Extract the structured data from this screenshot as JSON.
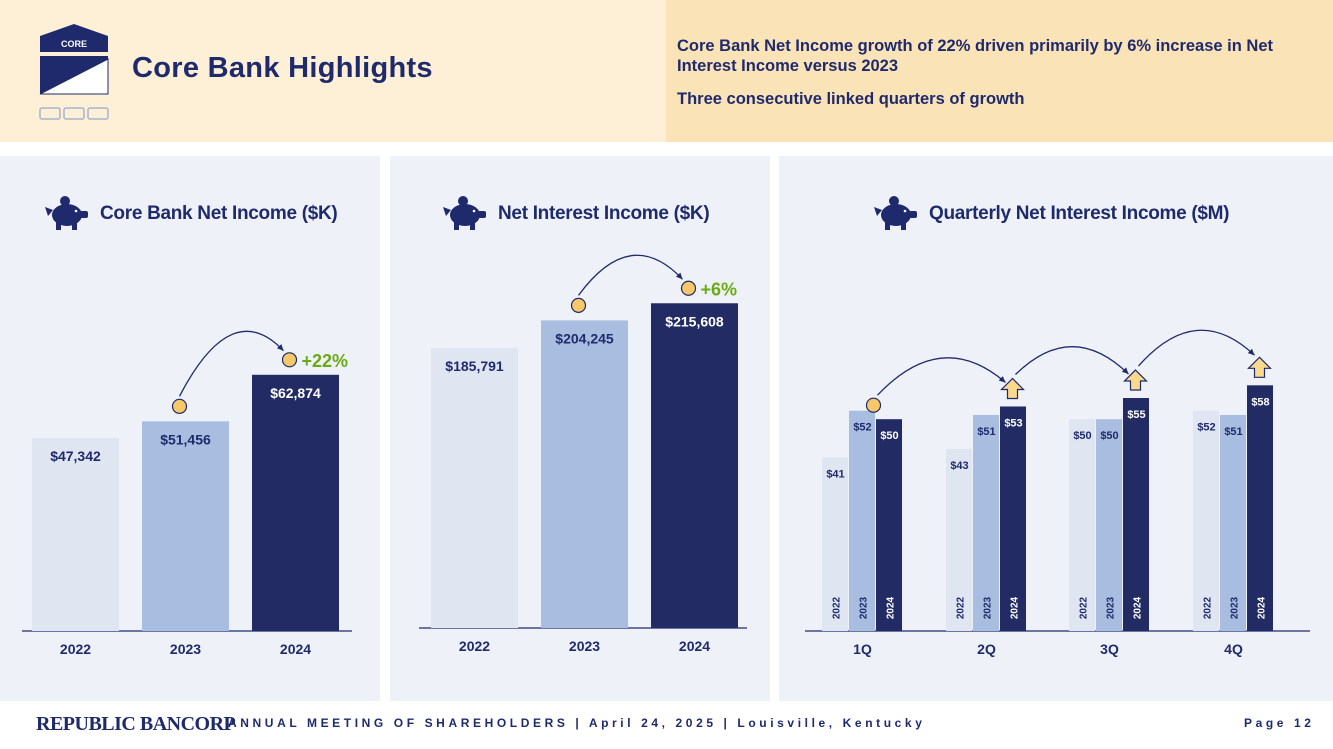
{
  "header": {
    "logo_text": "CORE",
    "title": "Core Bank Highlights",
    "highlight_1": "Core Bank Net Income growth of 22% driven primarily by 6% increase in Net Interest Income versus 2023",
    "highlight_2": "Three consecutive linked quarters of growth"
  },
  "colors": {
    "navy": "#1f2a6c",
    "bar_2022": "#dfe6f2",
    "bar_2023": "#a9bde0",
    "bar_2024": "#222b64",
    "growth_green": "#6aaa14",
    "circle_fill": "#f7c869",
    "arrow_fill": "#fbd98c"
  },
  "chart_data": [
    {
      "type": "bar",
      "title": "Core Bank Net Income ($K)",
      "icon": "piggy-bank-icon",
      "categories": [
        "2022",
        "2023",
        "2024"
      ],
      "values": [
        47342,
        51456,
        62874
      ],
      "labels": [
        "$47,342",
        "$51,456",
        "$62,874"
      ],
      "growth_label": "+22%",
      "ylim": [
        0,
        80000
      ]
    },
    {
      "type": "bar",
      "title": "Net Interest Income ($K)",
      "icon": "piggy-bank-icon",
      "categories": [
        "2022",
        "2023",
        "2024"
      ],
      "values": [
        185791,
        204245,
        215608
      ],
      "labels": [
        "$185,791",
        "$204,245",
        "$215,608"
      ],
      "growth_label": "+6%",
      "ylim": [
        0,
        245000
      ]
    },
    {
      "type": "bar",
      "title": "Quarterly Net Interest Income ($M)",
      "icon": "piggy-bank-icon",
      "categories": [
        "1Q",
        "2Q",
        "3Q",
        "4Q"
      ],
      "series": [
        {
          "name": "2022",
          "values": [
            41,
            43,
            50,
            52
          ],
          "labels": [
            "$41",
            "$43",
            "$50",
            "$52"
          ]
        },
        {
          "name": "2023",
          "values": [
            52,
            51,
            50,
            51
          ],
          "labels": [
            "$52",
            "$51",
            "$50",
            "$51"
          ]
        },
        {
          "name": "2024",
          "values": [
            50,
            53,
            55,
            58
          ],
          "labels": [
            "$50",
            "$53",
            "$55",
            "$58"
          ]
        }
      ],
      "ylim": [
        0,
        72
      ]
    }
  ],
  "footer": {
    "company": "REPUBLIC BANCORP",
    "event": "ANNUAL MEETING OF SHAREHOLDERS  |  April 24, 2025  |  Louisville, Kentucky",
    "page_label": "Page 12"
  }
}
